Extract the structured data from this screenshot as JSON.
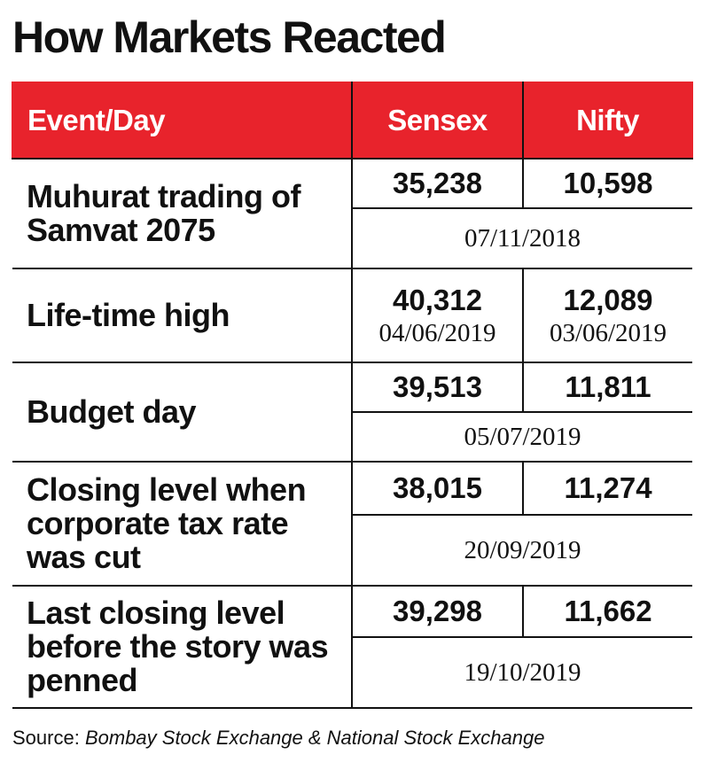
{
  "title": "How Markets Reacted",
  "columns": {
    "event": "Event/Day",
    "sensex": "Sensex",
    "nifty": "Nifty"
  },
  "rows": [
    {
      "event": "Muhurat  trading of Samvat 2075",
      "sensex": "35,238",
      "nifty": "10,598",
      "date": "07/11/2018"
    },
    {
      "event": "Life-time high",
      "sensex": "40,312",
      "sensex_date": "04/06/2019",
      "nifty": "12,089",
      "nifty_date": "03/06/2019"
    },
    {
      "event": "Budget  day",
      "sensex": "39,513",
      "nifty": "11,811",
      "date": "05/07/2019"
    },
    {
      "event": "Closing level when corporate tax rate was cut",
      "sensex": "38,015",
      "nifty": "11,274",
      "date": "20/09/2019"
    },
    {
      "event": "Last closing level before the story was penned",
      "sensex": "39,298",
      "nifty": "11,662",
      "date": "19/10/2019"
    }
  ],
  "source": {
    "label": "Source:",
    "text": "Bombay Stock Exchange & National Stock Exchange"
  },
  "colors": {
    "header_bg": "#e8232c",
    "header_text": "#ffffff",
    "border": "#111111"
  }
}
